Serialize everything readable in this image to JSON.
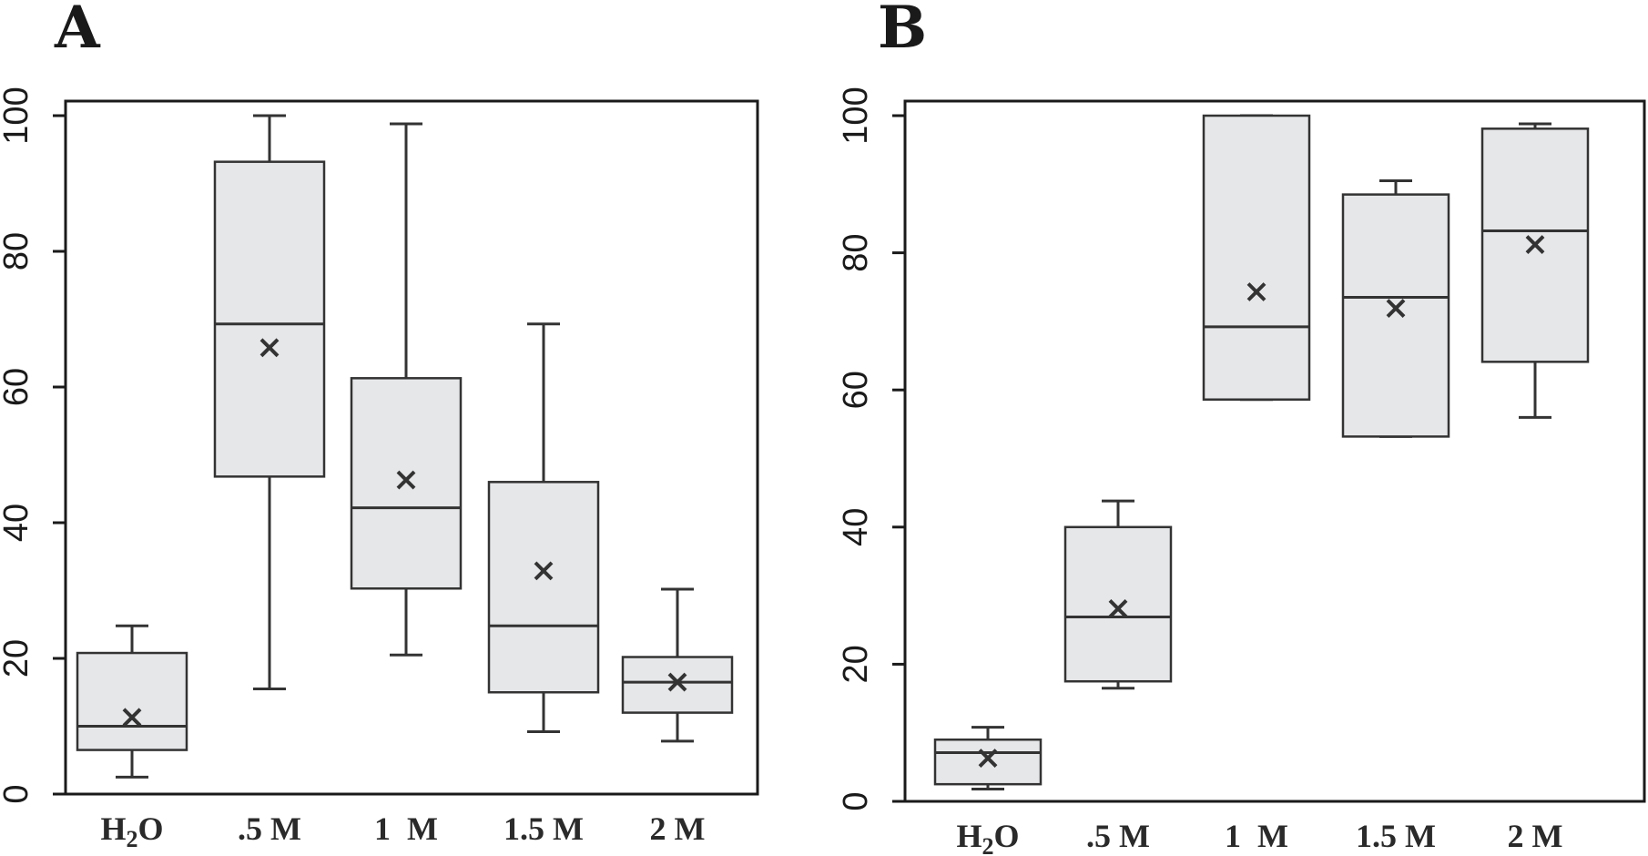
{
  "chart_data": [
    {
      "type": "box",
      "panel_label": "A",
      "categories": [
        "H2O",
        ".5 M",
        "1  M",
        "1.5 M",
        "2 M"
      ],
      "ylim": [
        0,
        100
      ],
      "yticks": [
        0,
        20,
        40,
        60,
        80,
        100
      ],
      "box_fill": "#e6e7e9",
      "boxes": [
        {
          "min": 2.5,
          "q1": 6.5,
          "median": 10,
          "q3": 20.8,
          "max": 24.8,
          "mean": 11.3
        },
        {
          "min": 15.5,
          "q1": 46.8,
          "median": 69.3,
          "q3": 93.2,
          "max": 100,
          "mean": 65.8
        },
        {
          "min": 20.5,
          "q1": 30.3,
          "median": 42.2,
          "q3": 61.3,
          "max": 98.8,
          "mean": 46.3
        },
        {
          "min": 9.2,
          "q1": 15,
          "median": 24.8,
          "q3": 46,
          "max": 69.3,
          "mean": 32.9
        },
        {
          "min": 7.8,
          "q1": 12,
          "median": 16.5,
          "q3": 20.2,
          "max": 30.2,
          "mean": 16.5
        }
      ]
    },
    {
      "type": "box",
      "panel_label": "B",
      "categories": [
        "H2O",
        ".5 M",
        "1  M",
        "1.5 M",
        "2 M"
      ],
      "ylim": [
        0,
        100
      ],
      "yticks": [
        0,
        20,
        40,
        60,
        80,
        100
      ],
      "box_fill": "#e6e7e9",
      "boxes": [
        {
          "min": 1.8,
          "q1": 2.5,
          "median": 7.1,
          "q3": 9.0,
          "max": 10.8,
          "mean": 6.3
        },
        {
          "min": 16.5,
          "q1": 17.5,
          "median": 26.9,
          "q3": 40,
          "max": 43.8,
          "mean": 28.1
        },
        {
          "min": 58.6,
          "q1": 58.6,
          "median": 69.2,
          "q3": 100,
          "max": 100,
          "mean": 74.3
        },
        {
          "min": 53.2,
          "q1": 53.2,
          "median": 73.5,
          "q3": 88.5,
          "max": 90.5,
          "mean": 71.9
        },
        {
          "min": 56,
          "q1": 64.1,
          "median": 83.2,
          "q3": 98.1,
          "max": 98.8,
          "mean": 81.2
        }
      ]
    }
  ]
}
